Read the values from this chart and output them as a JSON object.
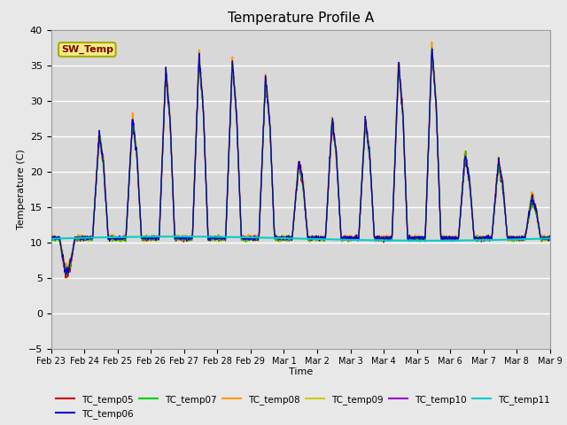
{
  "title": "Temperature Profile A",
  "xlabel": "Time",
  "ylabel": "Temperature (C)",
  "ylim": [
    -5,
    40
  ],
  "fig_facecolor": "#e8e8e8",
  "plot_bg_color": "#d8d8d8",
  "grid_color": "#ffffff",
  "sw_temp_label": "SW_Temp",
  "sw_temp_box_facecolor": "#eeee88",
  "sw_temp_box_edgecolor": "#aaaa00",
  "sw_temp_text_color": "#880000",
  "series_colors": {
    "TC_temp05": "#cc0000",
    "TC_temp06": "#0000cc",
    "TC_temp07": "#00cc00",
    "TC_temp08": "#ff9900",
    "TC_temp09": "#cccc00",
    "TC_temp10": "#9900cc",
    "TC_temp11": "#00cccc"
  },
  "x_tick_labels": [
    "Feb 23",
    "Feb 24",
    "Feb 25",
    "Feb 26",
    "Feb 27",
    "Feb 28",
    "Feb 29",
    "Mar 1",
    "Mar 2",
    "Mar 3",
    "Mar 4",
    "Mar 5",
    "Mar 6",
    "Mar 7",
    "Mar 8",
    "Mar 9"
  ],
  "yticks": [
    -5,
    0,
    5,
    10,
    15,
    20,
    25,
    30,
    35,
    40
  ],
  "peak_temps": [
    5,
    25,
    27,
    34,
    36,
    35,
    33,
    21,
    27,
    27,
    35,
    37,
    22,
    21,
    16,
    9
  ],
  "sw_base": 10.5
}
